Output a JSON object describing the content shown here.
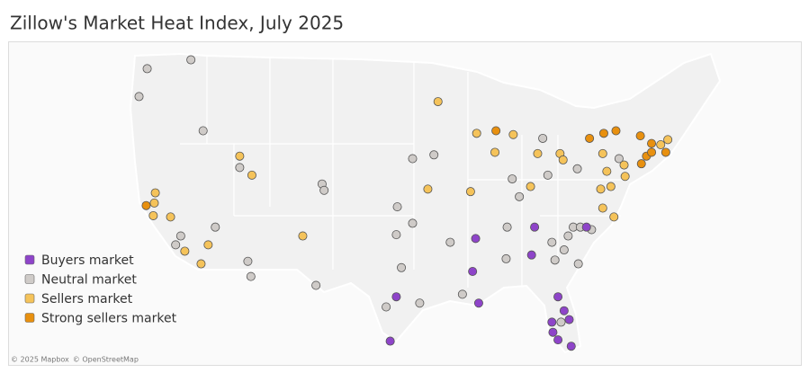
{
  "title": "Zillow's Market Heat Index, July 2025",
  "legend": [
    {
      "label": "Buyers market",
      "color": "#8e44c9"
    },
    {
      "label": "Neutral market",
      "color": "#cfcbc8"
    },
    {
      "label": "Sellers market",
      "color": "#f5c35a"
    },
    {
      "label": "Strong sellers market",
      "color": "#e8900f"
    }
  ],
  "points": [
    {
      "lon": -122.8,
      "lat": 47.5,
      "category": 1
    },
    {
      "lon": -118.5,
      "lat": 48.2,
      "category": 1
    },
    {
      "lon": -123.6,
      "lat": 45.3,
      "category": 1
    },
    {
      "lon": -117.3,
      "lat": 42.6,
      "category": 1
    },
    {
      "lon": -113.7,
      "lat": 39.7,
      "category": 1
    },
    {
      "lon": -105.6,
      "lat": 38.4,
      "category": 1
    },
    {
      "lon": -105.4,
      "lat": 37.9,
      "category": 1
    },
    {
      "lon": -98.2,
      "lat": 36.6,
      "category": 1
    },
    {
      "lon": -96.7,
      "lat": 40.4,
      "category": 1
    },
    {
      "lon": -94.6,
      "lat": 40.7,
      "category": 1
    },
    {
      "lon": -83.9,
      "lat": 42.0,
      "category": 1
    },
    {
      "lon": -86.9,
      "lat": 38.8,
      "category": 1
    },
    {
      "lon": -86.2,
      "lat": 37.4,
      "category": 1
    },
    {
      "lon": -83.4,
      "lat": 39.1,
      "category": 1
    },
    {
      "lon": -80.5,
      "lat": 39.6,
      "category": 1
    },
    {
      "lon": -76.4,
      "lat": 40.4,
      "category": 1
    },
    {
      "lon": -87.4,
      "lat": 35.0,
      "category": 1
    },
    {
      "lon": -96.7,
      "lat": 35.3,
      "category": 1
    },
    {
      "lon": -98.3,
      "lat": 34.4,
      "category": 1
    },
    {
      "lon": -93.0,
      "lat": 33.8,
      "category": 1
    },
    {
      "lon": -97.8,
      "lat": 31.8,
      "category": 1
    },
    {
      "lon": -112.9,
      "lat": 32.3,
      "category": 1
    },
    {
      "lon": -112.6,
      "lat": 31.1,
      "category": 1
    },
    {
      "lon": -119.5,
      "lat": 34.3,
      "category": 1
    },
    {
      "lon": -116.1,
      "lat": 35.0,
      "category": 1
    },
    {
      "lon": -120.0,
      "lat": 33.6,
      "category": 1
    },
    {
      "lon": -106.2,
      "lat": 30.4,
      "category": 1
    },
    {
      "lon": -96.0,
      "lat": 29.0,
      "category": 1
    },
    {
      "lon": -99.3,
      "lat": 28.7,
      "category": 1
    },
    {
      "lon": -91.8,
      "lat": 29.7,
      "category": 1
    },
    {
      "lon": -87.5,
      "lat": 32.5,
      "category": 1
    },
    {
      "lon": -83.0,
      "lat": 33.8,
      "category": 1
    },
    {
      "lon": -81.4,
      "lat": 34.3,
      "category": 1
    },
    {
      "lon": -80.9,
      "lat": 35.0,
      "category": 1
    },
    {
      "lon": -80.2,
      "lat": 35.0,
      "category": 1
    },
    {
      "lon": -79.1,
      "lat": 34.8,
      "category": 1
    },
    {
      "lon": -81.8,
      "lat": 33.2,
      "category": 1
    },
    {
      "lon": -82.7,
      "lat": 32.4,
      "category": 1
    },
    {
      "lon": -80.4,
      "lat": 32.1,
      "category": 1
    },
    {
      "lon": -82.1,
      "lat": 27.5,
      "category": 1
    },
    {
      "lon": -94.2,
      "lat": 44.9,
      "category": 2
    },
    {
      "lon": -90.4,
      "lat": 42.4,
      "category": 2
    },
    {
      "lon": -86.8,
      "lat": 42.3,
      "category": 2
    },
    {
      "lon": -88.6,
      "lat": 40.9,
      "category": 2
    },
    {
      "lon": -84.4,
      "lat": 40.8,
      "category": 2
    },
    {
      "lon": -82.2,
      "lat": 40.8,
      "category": 2
    },
    {
      "lon": -81.9,
      "lat": 40.3,
      "category": 2
    },
    {
      "lon": -95.2,
      "lat": 38.0,
      "category": 2
    },
    {
      "lon": -91.0,
      "lat": 37.8,
      "category": 2
    },
    {
      "lon": -85.1,
      "lat": 38.2,
      "category": 2
    },
    {
      "lon": -78.0,
      "lat": 40.8,
      "category": 2
    },
    {
      "lon": -77.6,
      "lat": 39.4,
      "category": 2
    },
    {
      "lon": -75.9,
      "lat": 39.9,
      "category": 2
    },
    {
      "lon": -75.8,
      "lat": 39.0,
      "category": 2
    },
    {
      "lon": -78.2,
      "lat": 38.0,
      "category": 2
    },
    {
      "lon": -77.2,
      "lat": 38.2,
      "category": 2
    },
    {
      "lon": -78.0,
      "lat": 36.5,
      "category": 2
    },
    {
      "lon": -76.9,
      "lat": 35.8,
      "category": 2
    },
    {
      "lon": -72.3,
      "lat": 41.5,
      "category": 2
    },
    {
      "lon": -71.6,
      "lat": 41.9,
      "category": 2
    },
    {
      "lon": -113.7,
      "lat": 40.6,
      "category": 2
    },
    {
      "lon": -112.5,
      "lat": 39.1,
      "category": 2
    },
    {
      "lon": -122.0,
      "lat": 37.7,
      "category": 2
    },
    {
      "lon": -122.1,
      "lat": 36.9,
      "category": 2
    },
    {
      "lon": -122.2,
      "lat": 35.9,
      "category": 2
    },
    {
      "lon": -120.5,
      "lat": 35.8,
      "category": 2
    },
    {
      "lon": -116.8,
      "lat": 33.6,
      "category": 2
    },
    {
      "lon": -119.1,
      "lat": 33.1,
      "category": 2
    },
    {
      "lon": -117.5,
      "lat": 32.1,
      "category": 2
    },
    {
      "lon": -107.5,
      "lat": 34.3,
      "category": 2
    },
    {
      "lon": -88.5,
      "lat": 42.6,
      "category": 3
    },
    {
      "lon": -79.3,
      "lat": 42.0,
      "category": 3
    },
    {
      "lon": -77.9,
      "lat": 42.4,
      "category": 3
    },
    {
      "lon": -76.7,
      "lat": 42.6,
      "category": 3
    },
    {
      "lon": -74.3,
      "lat": 42.2,
      "category": 3
    },
    {
      "lon": -73.2,
      "lat": 41.6,
      "category": 3
    },
    {
      "lon": -71.8,
      "lat": 40.9,
      "category": 3
    },
    {
      "lon": -73.7,
      "lat": 40.6,
      "category": 3
    },
    {
      "lon": -73.2,
      "lat": 40.9,
      "category": 3
    },
    {
      "lon": -74.2,
      "lat": 40.0,
      "category": 3
    },
    {
      "lon": -122.9,
      "lat": 36.7,
      "category": 3
    },
    {
      "lon": -90.5,
      "lat": 34.1,
      "category": 0
    },
    {
      "lon": -84.7,
      "lat": 35.0,
      "category": 0
    },
    {
      "lon": -79.6,
      "lat": 35.0,
      "category": 0
    },
    {
      "lon": -85.0,
      "lat": 32.8,
      "category": 0
    },
    {
      "lon": -90.8,
      "lat": 31.5,
      "category": 0
    },
    {
      "lon": -98.3,
      "lat": 29.5,
      "category": 0
    },
    {
      "lon": -90.2,
      "lat": 29.0,
      "category": 0
    },
    {
      "lon": -82.4,
      "lat": 29.5,
      "category": 0
    },
    {
      "lon": -81.8,
      "lat": 28.4,
      "category": 0
    },
    {
      "lon": -81.3,
      "lat": 27.7,
      "category": 0
    },
    {
      "lon": -83.0,
      "lat": 27.5,
      "category": 0
    },
    {
      "lon": -82.9,
      "lat": 26.7,
      "category": 0
    },
    {
      "lon": -82.4,
      "lat": 26.1,
      "category": 0
    },
    {
      "lon": -81.1,
      "lat": 25.6,
      "category": 0
    },
    {
      "lon": -98.9,
      "lat": 26.0,
      "category": 0
    }
  ],
  "attribution": [
    "© 2025 Mapbox",
    "© OpenStreetMap"
  ]
}
